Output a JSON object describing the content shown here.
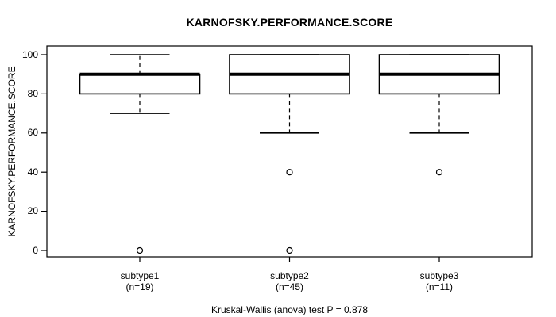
{
  "figure": {
    "background": "#ffffff"
  },
  "chart_data": {
    "type": "boxplot",
    "title": "KARNOFSKY.PERFORMANCE.SCORE",
    "ylabel": "KARNOFSKY.PERFORMANCE.SCORE",
    "xlabel": "",
    "ylim": [
      0,
      100
    ],
    "yticks": [
      0,
      20,
      40,
      60,
      80,
      100
    ],
    "grid": false,
    "legend": "none",
    "categories": [
      "subtype1",
      "subtype2",
      "subtype3"
    ],
    "group_labels": [
      "(n=19)",
      "(n=45)",
      "(n=11)"
    ],
    "boxes": [
      {
        "label": "subtype1",
        "n": 19,
        "whisker_low": 70,
        "q1": 80,
        "median": 90,
        "q3": 90,
        "whisker_high": 100,
        "outliers": [
          0
        ]
      },
      {
        "label": "subtype2",
        "n": 45,
        "whisker_low": 60,
        "q1": 80,
        "median": 90,
        "q3": 100,
        "whisker_high": 100,
        "outliers": [
          40,
          0
        ]
      },
      {
        "label": "subtype3",
        "n": 11,
        "whisker_low": 60,
        "q1": 80,
        "median": 90,
        "q3": 100,
        "whisker_high": 100,
        "outliers": [
          40
        ]
      }
    ],
    "annotation": "Kruskal-Wallis (anova) test P = 0.878",
    "colors": {
      "line": "#000000",
      "fill": "#ffffff",
      "background": "#ffffff"
    }
  }
}
